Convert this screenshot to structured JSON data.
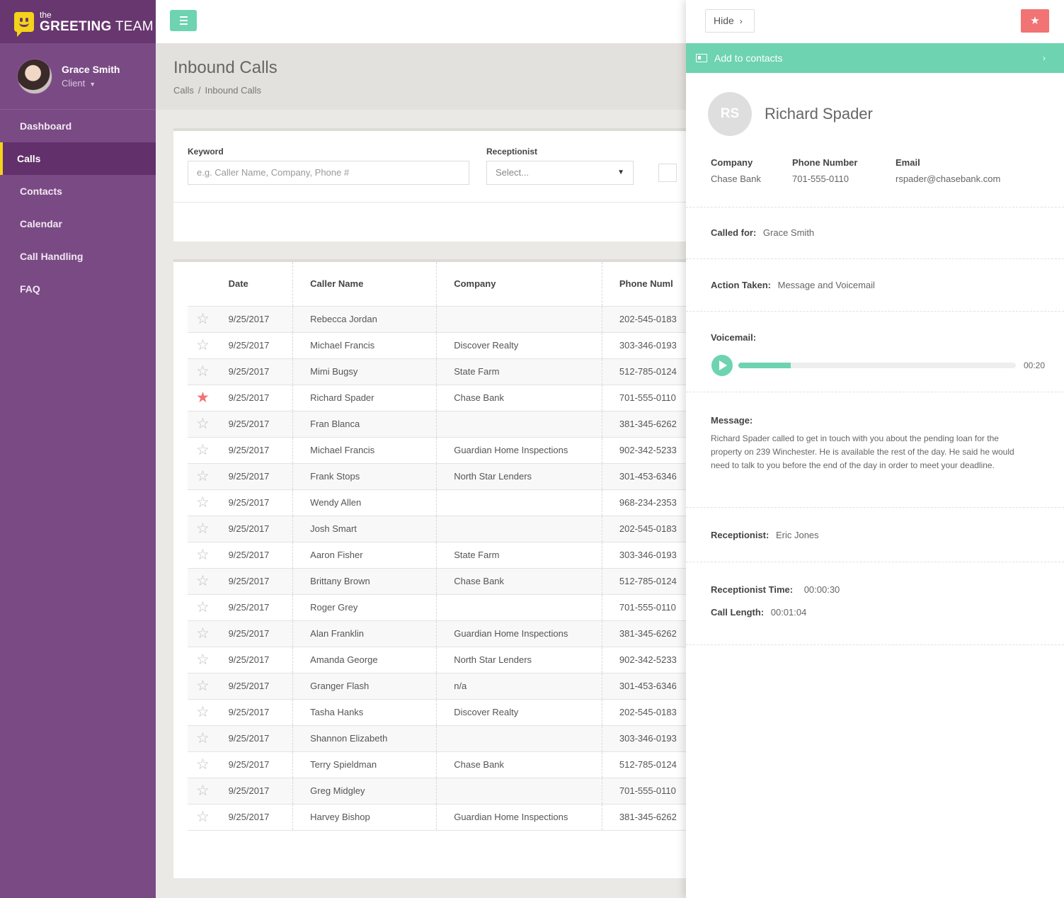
{
  "brand": {
    "small": "the",
    "big_bold": "GREETING",
    "big_rest": " TEAM"
  },
  "profile": {
    "name": "Grace Smith",
    "role": "Client"
  },
  "nav": [
    {
      "label": "Dashboard"
    },
    {
      "label": "Calls"
    },
    {
      "label": "Contacts"
    },
    {
      "label": "Calendar"
    },
    {
      "label": "Call Handling"
    },
    {
      "label": "FAQ"
    }
  ],
  "page": {
    "title": "Inbound Calls",
    "crumb_root": "Calls",
    "crumb_sep": "/",
    "crumb_current": "Inbound Calls"
  },
  "filters": {
    "keyword_label": "Keyword",
    "keyword_placeholder": "e.g. Caller Name, Company, Phone #",
    "receptionist_label": "Receptionist",
    "receptionist_value": "Select...",
    "select_arrow": "▼"
  },
  "table": {
    "headers": {
      "date": "Date",
      "name": "Caller Name",
      "company": "Company",
      "phone": "Phone Numl"
    },
    "rows": [
      {
        "starred": false,
        "date": "9/25/2017",
        "name": "Rebecca Jordan",
        "company": "",
        "phone": "202-545-0183"
      },
      {
        "starred": false,
        "date": "9/25/2017",
        "name": "Michael Francis",
        "company": "Discover Realty",
        "phone": "303-346-0193"
      },
      {
        "starred": false,
        "date": "9/25/2017",
        "name": "Mimi Bugsy",
        "company": "State Farm",
        "phone": "512-785-0124"
      },
      {
        "starred": true,
        "date": "9/25/2017",
        "name": "Richard Spader",
        "company": "Chase Bank",
        "phone": "701-555-0110"
      },
      {
        "starred": false,
        "date": "9/25/2017",
        "name": "Fran Blanca",
        "company": "",
        "phone": "381-345-6262"
      },
      {
        "starred": false,
        "date": "9/25/2017",
        "name": "Michael Francis",
        "company": "Guardian Home Inspections",
        "phone": "902-342-5233"
      },
      {
        "starred": false,
        "date": "9/25/2017",
        "name": "Frank Stops",
        "company": "North Star Lenders",
        "phone": "301-453-6346"
      },
      {
        "starred": false,
        "date": "9/25/2017",
        "name": "Wendy Allen",
        "company": "",
        "phone": "968-234-2353"
      },
      {
        "starred": false,
        "date": "9/25/2017",
        "name": "Josh Smart",
        "company": "",
        "phone": "202-545-0183"
      },
      {
        "starred": false,
        "date": "9/25/2017",
        "name": "Aaron Fisher",
        "company": "State Farm",
        "phone": "303-346-0193"
      },
      {
        "starred": false,
        "date": "9/25/2017",
        "name": "Brittany Brown",
        "company": "Chase Bank",
        "phone": "512-785-0124"
      },
      {
        "starred": false,
        "date": "9/25/2017",
        "name": "Roger Grey",
        "company": "",
        "phone": "701-555-0110"
      },
      {
        "starred": false,
        "date": "9/25/2017",
        "name": "Alan Franklin",
        "company": "Guardian Home Inspections",
        "phone": "381-345-6262"
      },
      {
        "starred": false,
        "date": "9/25/2017",
        "name": "Amanda George",
        "company": "North Star Lenders",
        "phone": "902-342-5233"
      },
      {
        "starred": false,
        "date": "9/25/2017",
        "name": "Granger Flash",
        "company": "n/a",
        "phone": "301-453-6346"
      },
      {
        "starred": false,
        "date": "9/25/2017",
        "name": "Tasha Hanks",
        "company": "Discover Realty",
        "phone": "202-545-0183"
      },
      {
        "starred": false,
        "date": "9/25/2017",
        "name": "Shannon Elizabeth",
        "company": "",
        "phone": "303-346-0193"
      },
      {
        "starred": false,
        "date": "9/25/2017",
        "name": "Terry Spieldman",
        "company": "Chase Bank",
        "phone": "512-785-0124"
      },
      {
        "starred": false,
        "date": "9/25/2017",
        "name": "Greg Midgley",
        "company": "",
        "phone": "701-555-0110"
      },
      {
        "starred": false,
        "date": "9/25/2017",
        "name": "Harvey Bishop",
        "company": "Guardian Home Inspections",
        "phone": "381-345-6262"
      }
    ]
  },
  "detail": {
    "hide_label": "Hide",
    "add_contacts_label": "Add to contacts",
    "initials": "RS",
    "name": "Richard Spader",
    "company_label": "Company",
    "company": "Chase Bank",
    "phone_label": "Phone Number",
    "phone": "701-555-0110",
    "email_label": "Email",
    "email": "rspader@chasebank.com",
    "called_for_label": "Called for:",
    "called_for": "Grace Smith",
    "action_label": "Action Taken:",
    "action": "Message and Voicemail",
    "voicemail_label": "Voicemail:",
    "voicemail_time": "00:20",
    "voicemail_progress": 0.19,
    "message_label": "Message:",
    "message": "Richard Spader called to get in touch with you about the pending loan for the property on 239 Winchester. He is available the rest of the day. He said he would need to talk to you before the end of the day in order to meet your deadline.",
    "receptionist_label": "Receptionist:",
    "receptionist": "Eric Jones",
    "rtime_label": "Receptionist Time:",
    "rtime": "00:00:30",
    "length_label": "Call Length:",
    "length": "00:01:04"
  },
  "colors": {
    "sidebar": "#7a4a84",
    "accent_green": "#6dd3b0",
    "star_red": "#f17373",
    "brand_yellow": "#f4d31a"
  },
  "icons": {
    "menu": "hamburger-icon",
    "star": "star-icon",
    "play": "play-icon",
    "contact_card": "contact-card-icon",
    "chevron": "chevron-right-icon"
  }
}
